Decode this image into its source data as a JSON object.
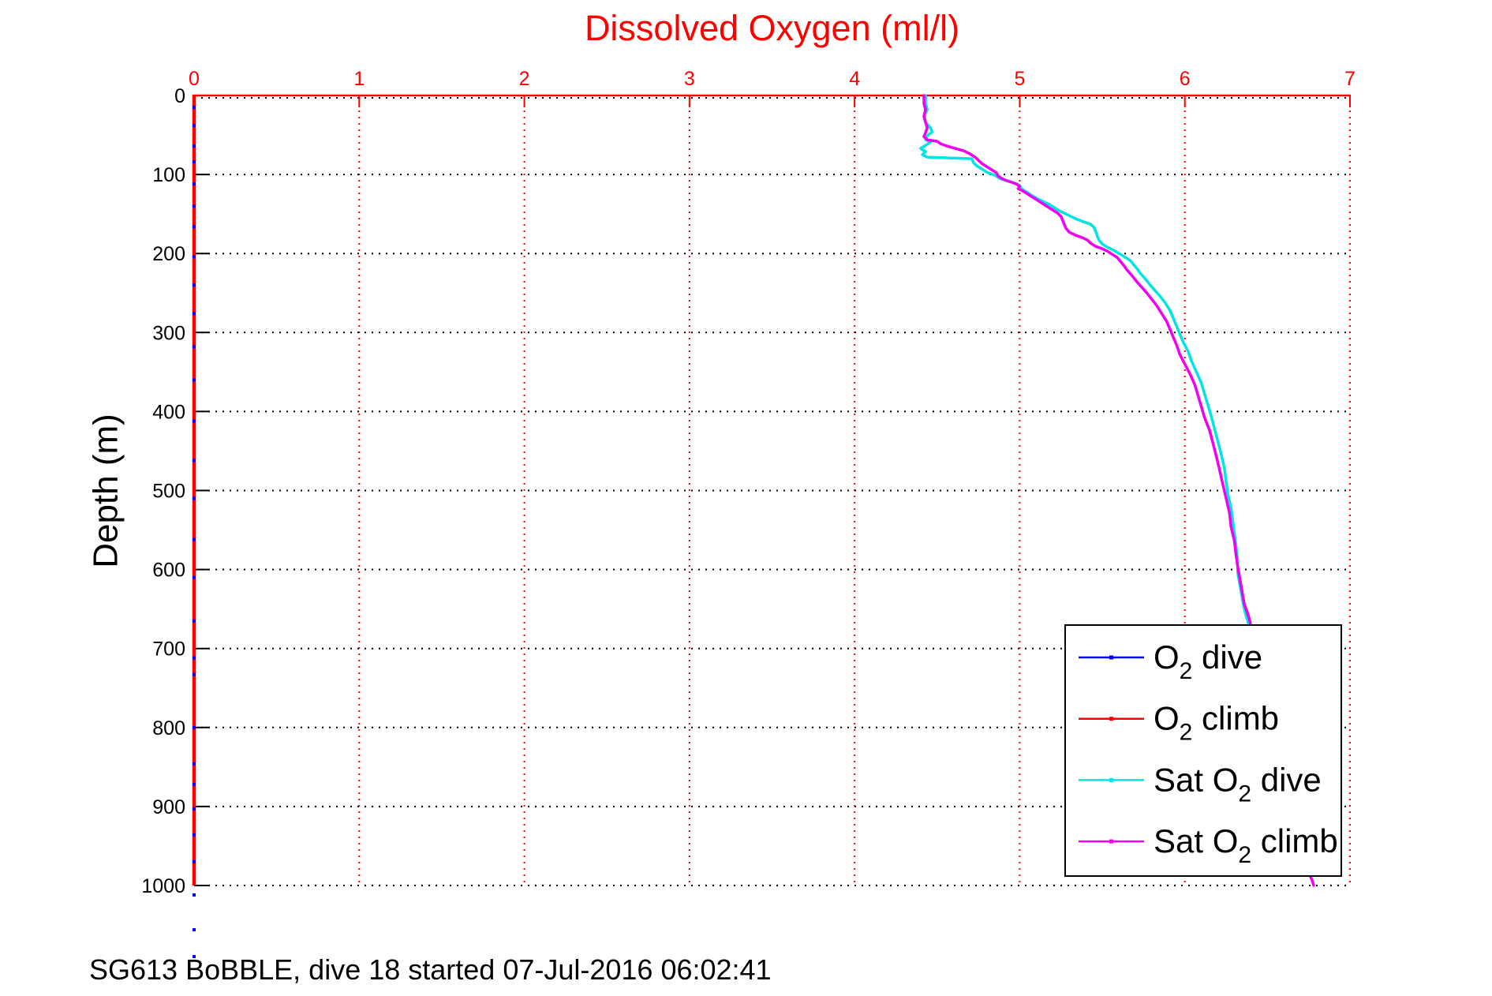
{
  "title": "Dissolved Oxygen (ml/l)",
  "caption": "SG613 BoBBLE, dive 18 started 07-Jul-2016 06:02:41",
  "chart_data": {
    "type": "line",
    "title": "Dissolved Oxygen (ml/l)",
    "xlabel": "Dissolved Oxygen (ml/l)",
    "ylabel": "Depth (m)",
    "xlim": [
      0,
      7
    ],
    "ylim": [
      0,
      1000
    ],
    "y_inverted": true,
    "x_ticks": [
      0,
      1,
      2,
      3,
      4,
      5,
      6,
      7
    ],
    "y_ticks": [
      0,
      100,
      200,
      300,
      400,
      500,
      600,
      700,
      800,
      900,
      1000
    ],
    "grid": {
      "vertical_style": "dotted",
      "vertical_color": "#ff0000",
      "horizontal_style": "dotted",
      "horizontal_color": "#000000"
    },
    "axes": {
      "axis_color": "#ff0000",
      "x_tick_label_color": "#ff0000",
      "y_tick_label_color": "#000000",
      "title_color": "#ff0000",
      "x_axis_position": "top",
      "y_axis_position": "left"
    },
    "legend": {
      "position": "lower-right",
      "border_color": "#000000",
      "background": "#ffffff"
    },
    "series": [
      {
        "name": "O2 dive",
        "label_pre": "O",
        "label_sub": "2",
        "label_post": " dive",
        "color": "#0000ff",
        "style": "dot-markers",
        "note": "values at ~0 ml/l, markers lie on the left axis",
        "marker_x": 0.0,
        "marker_depths": [
          15,
          38,
          64,
          84,
          112,
          140,
          166,
          204,
          240,
          276,
          318,
          360,
          412,
          462,
          510,
          562,
          610,
          665,
          712,
          733,
          800,
          846,
          872,
          903,
          936,
          970,
          1012,
          1056,
          1090
        ]
      },
      {
        "name": "O2 climb",
        "label_pre": "O",
        "label_sub": "2",
        "label_post": " climb",
        "color": "#ff0000",
        "style": "line",
        "note": "coincides with the left axis (~0 ml/l), not visibly distinct",
        "points": []
      },
      {
        "name": "Sat O2 dive",
        "label_pre": "Sat O",
        "label_sub": "2",
        "label_post": " dive",
        "color": "#00e4e4",
        "style": "line",
        "points": [
          [
            4.43,
            0
          ],
          [
            4.43,
            10
          ],
          [
            4.44,
            18
          ],
          [
            4.42,
            26
          ],
          [
            4.43,
            34
          ],
          [
            4.46,
            41
          ],
          [
            4.47,
            46
          ],
          [
            4.44,
            51
          ],
          [
            4.43,
            56
          ],
          [
            4.46,
            59
          ],
          [
            4.43,
            63
          ],
          [
            4.4,
            67
          ],
          [
            4.43,
            71
          ],
          [
            4.41,
            75
          ],
          [
            4.44,
            78
          ],
          [
            4.57,
            79
          ],
          [
            4.71,
            80
          ],
          [
            4.72,
            85
          ],
          [
            4.74,
            89
          ],
          [
            4.77,
            93
          ],
          [
            4.8,
            97
          ],
          [
            4.85,
            101
          ],
          [
            4.88,
            105
          ],
          [
            4.92,
            108
          ],
          [
            4.97,
            111
          ],
          [
            5.0,
            114
          ],
          [
            5.01,
            118
          ],
          [
            5.04,
            122
          ],
          [
            5.07,
            126
          ],
          [
            5.1,
            130
          ],
          [
            5.14,
            134
          ],
          [
            5.18,
            138
          ],
          [
            5.21,
            142
          ],
          [
            5.24,
            146
          ],
          [
            5.28,
            150
          ],
          [
            5.31,
            153
          ],
          [
            5.35,
            157
          ],
          [
            5.39,
            160
          ],
          [
            5.43,
            163
          ],
          [
            5.45,
            167
          ],
          [
            5.46,
            172
          ],
          [
            5.47,
            178
          ],
          [
            5.48,
            183
          ],
          [
            5.5,
            188
          ],
          [
            5.53,
            192
          ],
          [
            5.57,
            196
          ],
          [
            5.61,
            201
          ],
          [
            5.64,
            205
          ],
          [
            5.67,
            209
          ],
          [
            5.69,
            214
          ],
          [
            5.71,
            219
          ],
          [
            5.73,
            225
          ],
          [
            5.76,
            232
          ],
          [
            5.79,
            240
          ],
          [
            5.82,
            247
          ],
          [
            5.85,
            254
          ],
          [
            5.88,
            262
          ],
          [
            5.91,
            272
          ],
          [
            5.93,
            282
          ],
          [
            5.95,
            292
          ],
          [
            5.97,
            302
          ],
          [
            5.99,
            312
          ],
          [
            6.02,
            324
          ],
          [
            6.04,
            336
          ],
          [
            6.07,
            350
          ],
          [
            6.1,
            364
          ],
          [
            6.12,
            378
          ],
          [
            6.14,
            392
          ],
          [
            6.16,
            406
          ],
          [
            6.18,
            422
          ],
          [
            6.2,
            438
          ],
          [
            6.22,
            454
          ],
          [
            6.24,
            472
          ],
          [
            6.25,
            488
          ],
          [
            6.26,
            504
          ],
          [
            6.28,
            522
          ],
          [
            6.29,
            538
          ],
          [
            6.3,
            554
          ],
          [
            6.31,
            570
          ],
          [
            6.32,
            588
          ],
          [
            6.32,
            604
          ],
          [
            6.33,
            616
          ],
          [
            6.34,
            628
          ],
          [
            6.35,
            640
          ],
          [
            6.36,
            650
          ],
          [
            6.37,
            658
          ],
          [
            6.38,
            664
          ],
          [
            6.41,
            690
          ],
          [
            6.44,
            720
          ],
          [
            6.48,
            756
          ],
          [
            6.52,
            796
          ],
          [
            6.56,
            838
          ],
          [
            6.6,
            878
          ],
          [
            6.64,
            916
          ],
          [
            6.68,
            950
          ],
          [
            6.71,
            972
          ],
          [
            6.73,
            984
          ]
        ]
      },
      {
        "name": "Sat O2 climb",
        "label_pre": "Sat O",
        "label_sub": "2",
        "label_post": " climb",
        "color": "#f000f0",
        "style": "line",
        "points": [
          [
            4.42,
            0
          ],
          [
            4.42,
            10
          ],
          [
            4.43,
            18
          ],
          [
            4.42,
            26
          ],
          [
            4.43,
            34
          ],
          [
            4.44,
            41
          ],
          [
            4.43,
            47
          ],
          [
            4.42,
            52
          ],
          [
            4.44,
            56
          ],
          [
            4.5,
            58
          ],
          [
            4.52,
            61
          ],
          [
            4.56,
            64
          ],
          [
            4.61,
            67
          ],
          [
            4.66,
            70
          ],
          [
            4.7,
            74
          ],
          [
            4.73,
            78
          ],
          [
            4.75,
            82
          ],
          [
            4.77,
            86
          ],
          [
            4.8,
            90
          ],
          [
            4.83,
            94
          ],
          [
            4.86,
            98
          ],
          [
            4.87,
            102
          ],
          [
            4.9,
            106
          ],
          [
            4.94,
            109
          ],
          [
            4.98,
            112
          ],
          [
            5.0,
            115
          ],
          [
            4.99,
            118
          ],
          [
            5.02,
            121
          ],
          [
            5.05,
            125
          ],
          [
            5.08,
            129
          ],
          [
            5.11,
            133
          ],
          [
            5.14,
            137
          ],
          [
            5.17,
            141
          ],
          [
            5.2,
            145
          ],
          [
            5.23,
            149
          ],
          [
            5.25,
            153
          ],
          [
            5.26,
            158
          ],
          [
            5.27,
            163
          ],
          [
            5.28,
            168
          ],
          [
            5.3,
            173
          ],
          [
            5.34,
            177
          ],
          [
            5.38,
            180
          ],
          [
            5.41,
            183
          ],
          [
            5.43,
            187
          ],
          [
            5.46,
            191
          ],
          [
            5.5,
            194
          ],
          [
            5.53,
            197
          ],
          [
            5.56,
            201
          ],
          [
            5.59,
            205
          ],
          [
            5.61,
            210
          ],
          [
            5.63,
            215
          ],
          [
            5.65,
            221
          ],
          [
            5.68,
            228
          ],
          [
            5.71,
            236
          ],
          [
            5.74,
            243
          ],
          [
            5.77,
            250
          ],
          [
            5.8,
            258
          ],
          [
            5.83,
            266
          ],
          [
            5.86,
            276
          ],
          [
            5.89,
            286
          ],
          [
            5.91,
            296
          ],
          [
            5.93,
            306
          ],
          [
            5.95,
            316
          ],
          [
            5.97,
            328
          ],
          [
            6.0,
            340
          ],
          [
            6.03,
            352
          ],
          [
            6.06,
            366
          ],
          [
            6.08,
            380
          ],
          [
            6.1,
            394
          ],
          [
            6.12,
            408
          ],
          [
            6.15,
            424
          ],
          [
            6.17,
            440
          ],
          [
            6.19,
            456
          ],
          [
            6.21,
            474
          ],
          [
            6.23,
            492
          ],
          [
            6.25,
            510
          ],
          [
            6.27,
            528
          ],
          [
            6.28,
            546
          ],
          [
            6.3,
            564
          ],
          [
            6.31,
            582
          ],
          [
            6.32,
            596
          ],
          [
            6.33,
            608
          ],
          [
            6.34,
            620
          ],
          [
            6.35,
            632
          ],
          [
            6.36,
            644
          ],
          [
            6.38,
            655
          ],
          [
            6.39,
            662
          ],
          [
            6.42,
            690
          ],
          [
            6.45,
            720
          ],
          [
            6.49,
            756
          ],
          [
            6.53,
            796
          ],
          [
            6.57,
            838
          ],
          [
            6.61,
            878
          ],
          [
            6.65,
            916
          ],
          [
            6.69,
            950
          ],
          [
            6.73,
            972
          ],
          [
            6.75,
            984
          ],
          [
            6.77,
            993
          ],
          [
            6.78,
            1000
          ]
        ]
      }
    ]
  }
}
